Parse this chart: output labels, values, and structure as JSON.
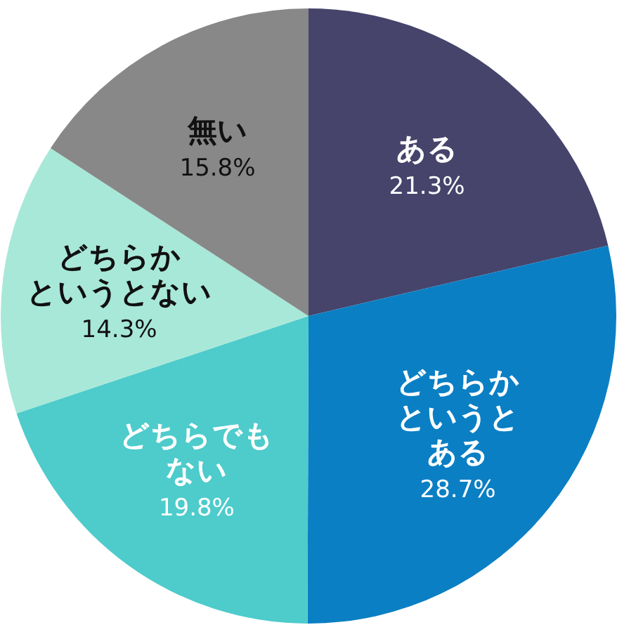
{
  "chart_data": {
    "type": "pie",
    "categories": [
      "ある",
      "どちらかというとある",
      "どちらでもない",
      "どちらかというとない",
      "無い"
    ],
    "values": [
      21.3,
      28.7,
      19.8,
      14.3,
      15.8
    ],
    "colors": [
      "#46446b",
      "#0a7fc4",
      "#4ecbcb",
      "#a8e8d8",
      "#888888"
    ],
    "value_labels": [
      "21.3%",
      "28.7%",
      "19.8%",
      "14.3%",
      "15.8%"
    ]
  }
}
